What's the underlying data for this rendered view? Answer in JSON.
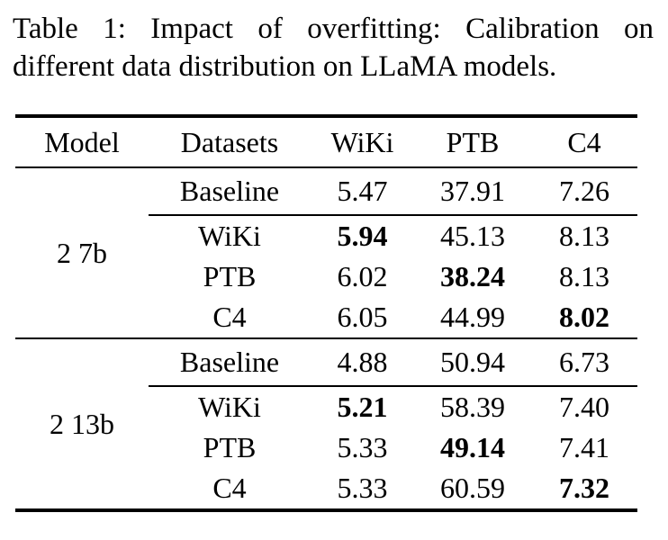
{
  "colors": {
    "text": "#000000",
    "background": "#ffffff"
  },
  "caption": {
    "line1": "Table 1: Impact of overfitting: Calibration on",
    "line2": "different data distribution on LLaMA models."
  },
  "table": {
    "headers": [
      "Model",
      "Datasets",
      "WiKi",
      "PTB",
      "C4"
    ],
    "groups": [
      {
        "model": "2 7b",
        "rows": [
          {
            "dataset": "Baseline",
            "wiki": "5.47",
            "ptb": "37.91",
            "c4": "7.26"
          },
          {
            "dataset": "WiKi",
            "wiki": "5.94",
            "ptb": "45.13",
            "c4": "8.13"
          },
          {
            "dataset": "PTB",
            "wiki": "6.02",
            "ptb": "38.24",
            "c4": "8.13"
          },
          {
            "dataset": "C4",
            "wiki": "6.05",
            "ptb": "44.99",
            "c4": "8.02"
          }
        ]
      },
      {
        "model": "2 13b",
        "rows": [
          {
            "dataset": "Baseline",
            "wiki": "4.88",
            "ptb": "50.94",
            "c4": "6.73"
          },
          {
            "dataset": "WiKi",
            "wiki": "5.21",
            "ptb": "58.39",
            "c4": "7.40"
          },
          {
            "dataset": "PTB",
            "wiki": "5.33",
            "ptb": "49.14",
            "c4": "7.41"
          },
          {
            "dataset": "C4",
            "wiki": "5.33",
            "ptb": "60.59",
            "c4": "7.32"
          }
        ]
      }
    ]
  }
}
